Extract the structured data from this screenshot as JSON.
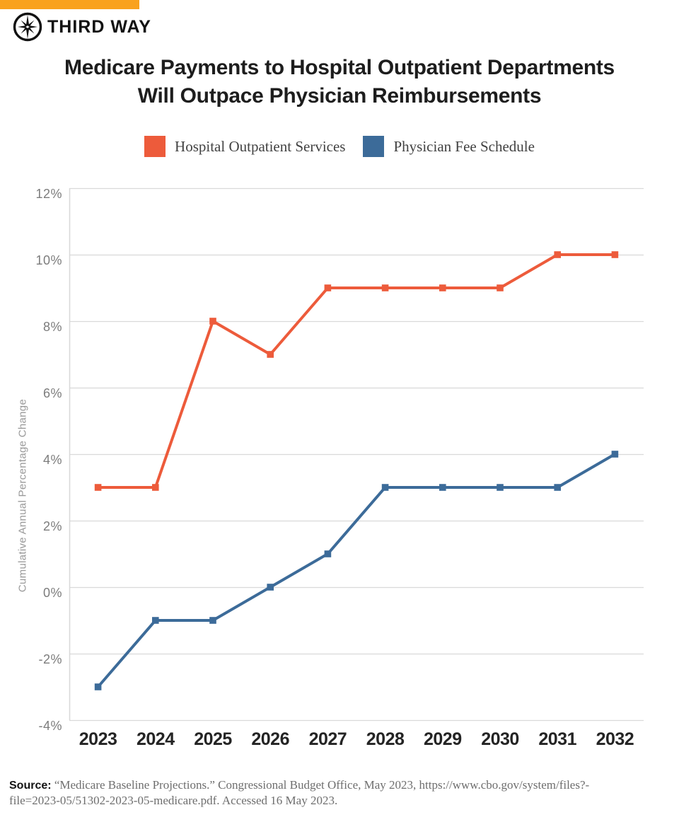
{
  "brand": {
    "name": "THIRD WAY",
    "accent_bar_color": "#F9A21D"
  },
  "title": {
    "line1": "Medicare Payments to Hospital Outpatient Departments",
    "line2": "Will Outpace Physician Reimbursements"
  },
  "chart_data": {
    "type": "line",
    "x": [
      "2023",
      "2024",
      "2025",
      "2026",
      "2027",
      "2028",
      "2029",
      "2030",
      "2031",
      "2032"
    ],
    "series": [
      {
        "name": "Hospital Outpatient Services",
        "color": "#ED5B3B",
        "values": [
          3,
          3,
          8,
          7,
          9,
          9,
          9,
          9,
          10,
          10
        ]
      },
      {
        "name": "Physician Fee Schedule",
        "color": "#3C6B99",
        "values": [
          -3,
          -1,
          -1,
          0,
          1,
          3,
          3,
          3,
          3,
          4
        ]
      }
    ],
    "ylabel": "Cumulative Annual Percentage Change",
    "xlabel": "",
    "ylim": [
      -4,
      12
    ],
    "ytick_step": 2,
    "yticks": [
      "12%",
      "10%",
      "8%",
      "6%",
      "4%",
      "2%",
      "0%",
      "-2%",
      "-4%"
    ],
    "grid": true,
    "grid_color": "#D9D9D9",
    "legend_position": "top"
  },
  "source": {
    "label": "Source:",
    "line1": "“Medicare Baseline Projections.” Congressional Budget Office, May 2023, https://www.cbo.gov/system/files?-",
    "line2": "file=2023-05/51302-2023-05-medicare.pdf. Accessed 16 May 2023."
  }
}
